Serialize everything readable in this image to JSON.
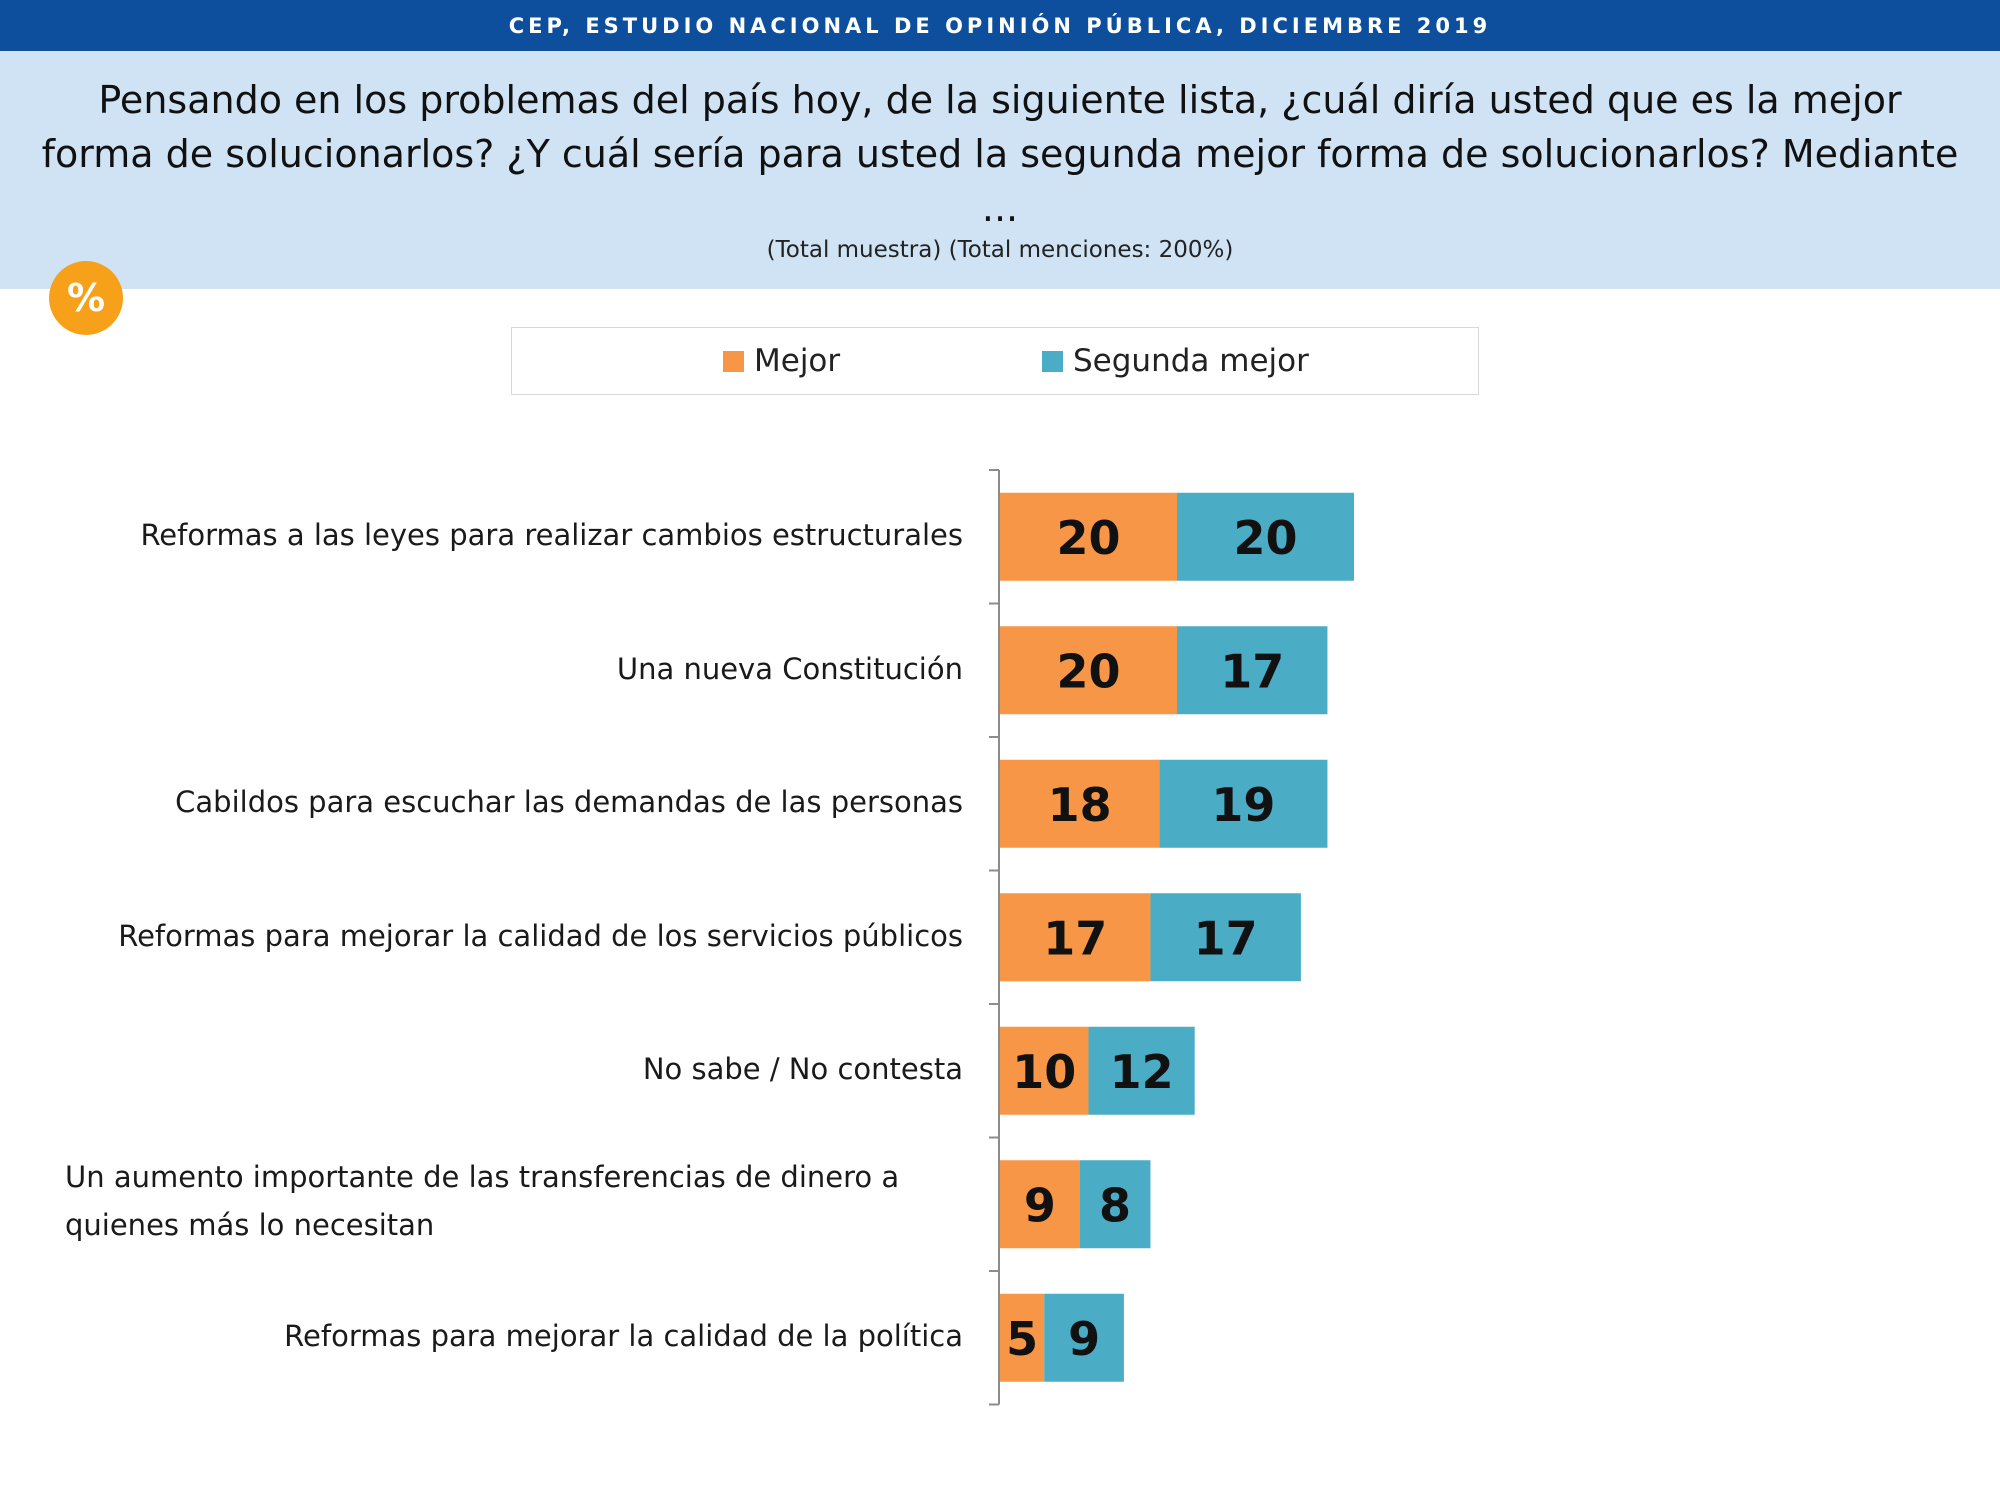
{
  "header": {
    "banner": "CEP, ESTUDIO NACIONAL DE OPINIÓN PÚBLICA, DICIEMBRE 2019",
    "question": "Pensando en los problemas del país hoy, de la siguiente lista, ¿cuál diría usted que es la mejor forma de solucionarlos? ¿Y cuál sería para usted la segunda mejor forma de solucionarlos? Mediante ...",
    "note": "(Total muestra) (Total menciones: 200%)",
    "badge": "%"
  },
  "chart_data": {
    "type": "bar",
    "orientation": "horizontal",
    "stacked": true,
    "categories": [
      "Reformas a las leyes para realizar cambios estructurales",
      "Una nueva Constitución",
      "Cabildos para escuchar las demandas de las personas",
      "Reformas para mejorar la calidad de los servicios públicos",
      "No sabe / No contesta",
      "Un aumento importante de las transferencias de dinero a quienes más lo necesitan",
      "Reformas para mejorar la calidad de la política"
    ],
    "series": [
      {
        "name": "Mejor",
        "color": "#f79646",
        "values": [
          20,
          20,
          18,
          17,
          10,
          9,
          5
        ]
      },
      {
        "name": "Segunda mejor",
        "color": "#4bacc6",
        "values": [
          20,
          17,
          19,
          17,
          12,
          8,
          9
        ]
      }
    ],
    "legend_position": "top",
    "grid": false,
    "data_labels": true,
    "xlim": [
      0,
      100
    ]
  }
}
